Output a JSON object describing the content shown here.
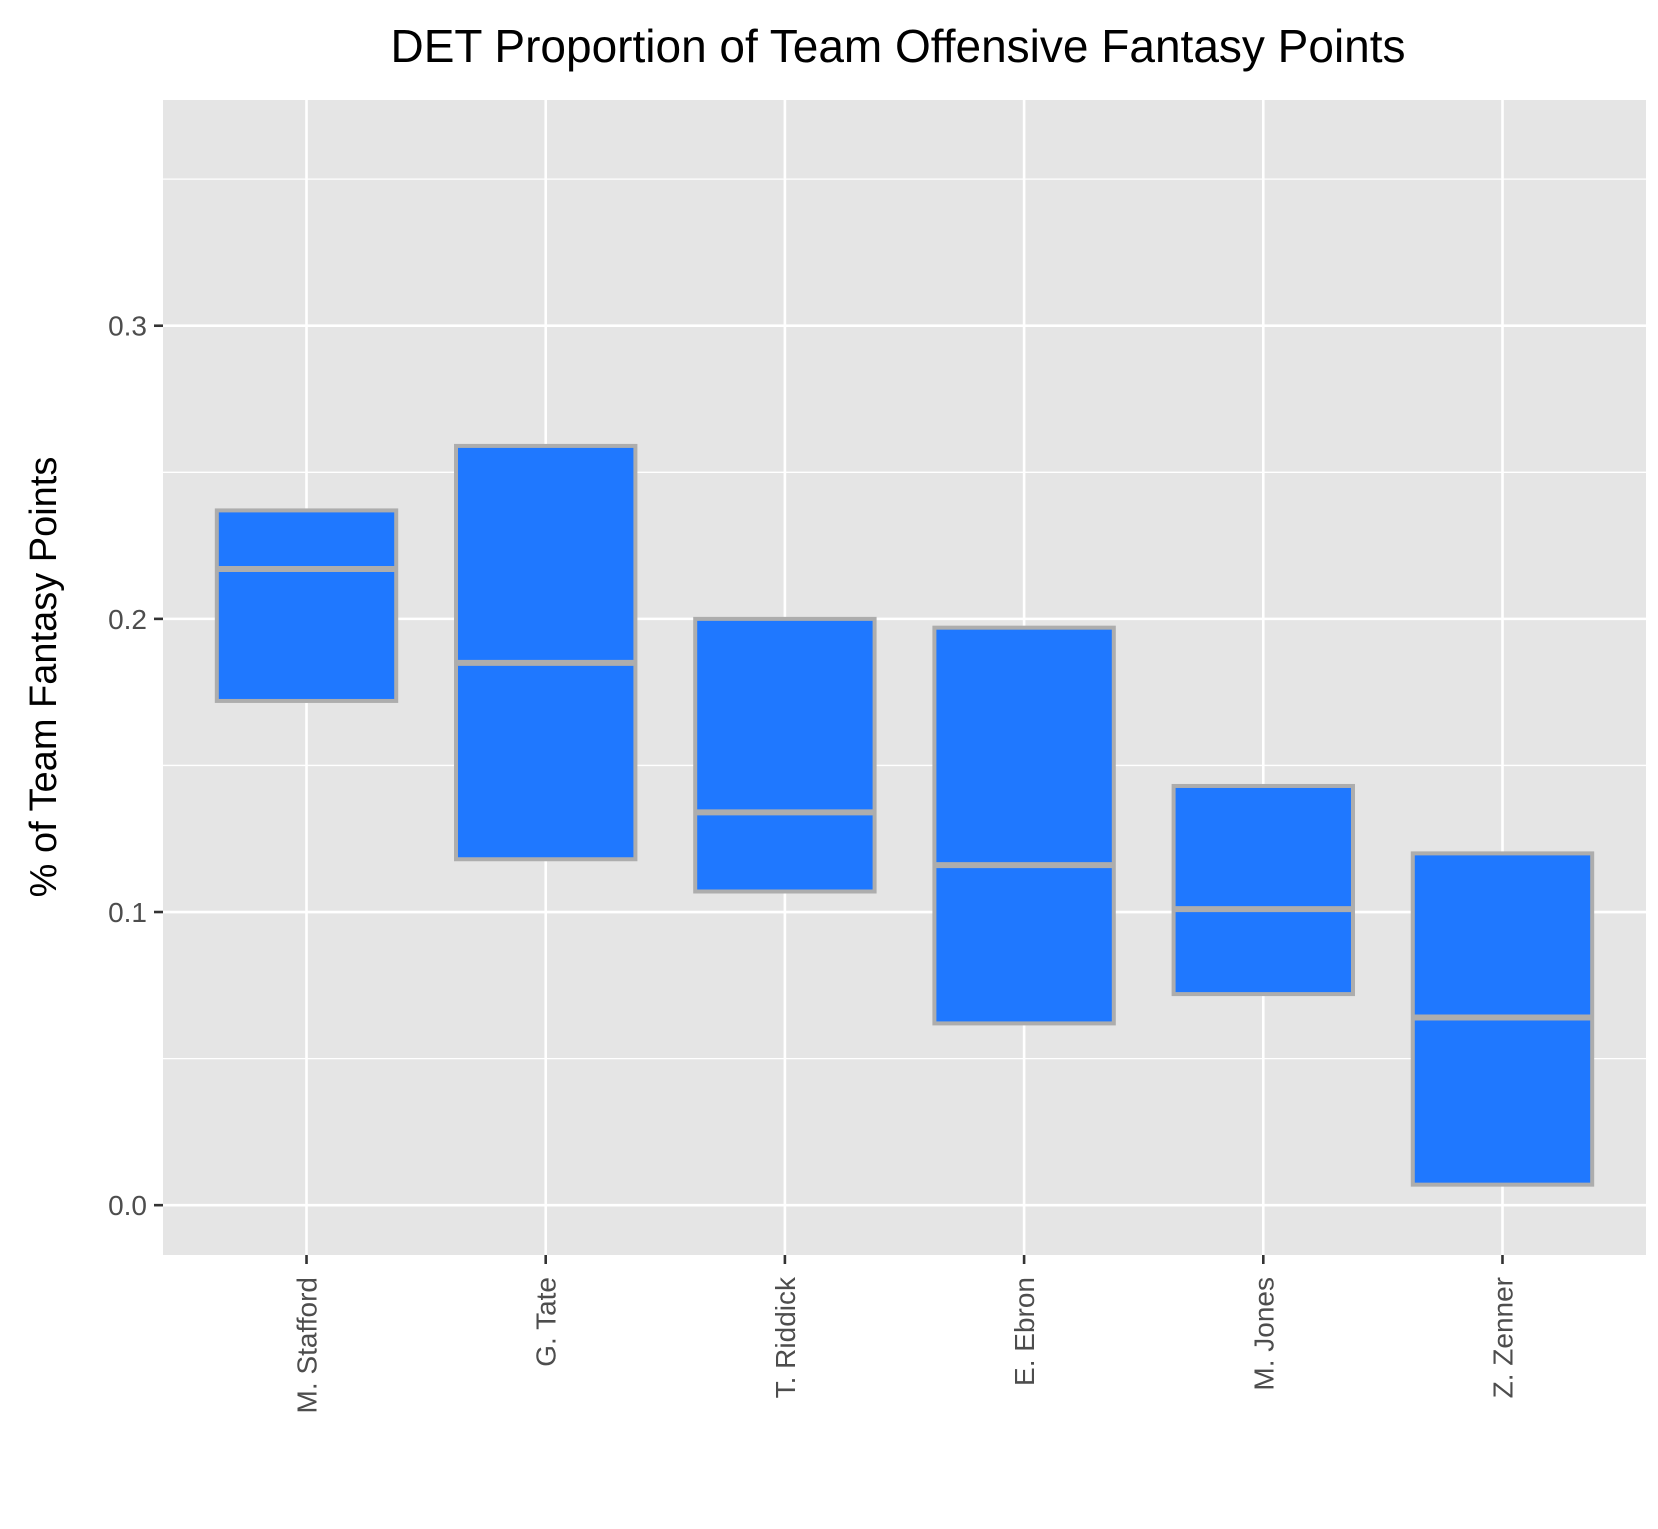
{
  "chart_data": {
    "type": "box",
    "title": "DET Proportion of Team Offensive Fantasy Points",
    "xlabel": "",
    "ylabel": "% of Team Fantasy Points",
    "ylim": [
      -0.017,
      0.377
    ],
    "yticks": [
      0.0,
      0.1,
      0.2,
      0.3
    ],
    "ytick_labels": [
      "0.0",
      "0.1",
      "0.2",
      "0.3"
    ],
    "grid": true,
    "categories": [
      "M. Stafford",
      "G. Tate",
      "T. Riddick",
      "E. Ebron",
      "M. Jones",
      "Z. Zenner"
    ],
    "boxes": [
      {
        "q1": 0.172,
        "median": 0.217,
        "q3": 0.237
      },
      {
        "q1": 0.118,
        "median": 0.185,
        "q3": 0.259
      },
      {
        "q1": 0.107,
        "median": 0.134,
        "q3": 0.2
      },
      {
        "q1": 0.062,
        "median": 0.116,
        "q3": 0.197
      },
      {
        "q1": 0.072,
        "median": 0.101,
        "q3": 0.143
      },
      {
        "q1": 0.007,
        "median": 0.064,
        "q3": 0.12
      }
    ],
    "colors": {
      "fill": "#1f78ff",
      "stroke": "#adadad",
      "panel": "#e5e5e5",
      "grid": "#ffffff"
    }
  }
}
